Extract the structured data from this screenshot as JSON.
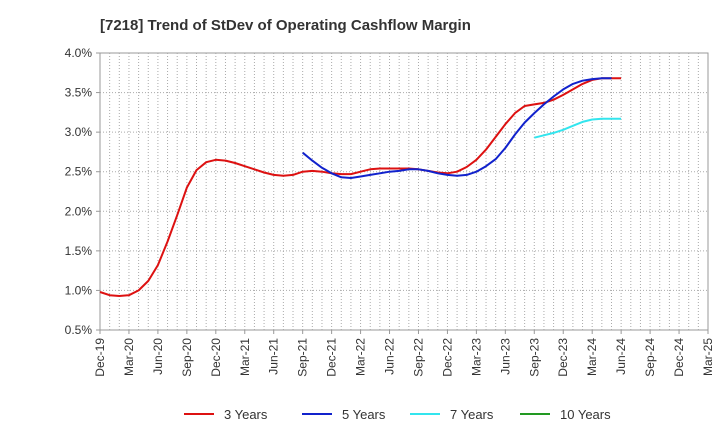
{
  "chart_data": {
    "type": "line",
    "title": "[7218]  Trend of StDev of Operating Cashflow Margin",
    "xlabel": "",
    "ylabel": "",
    "ylim": [
      0.5,
      4.0
    ],
    "y_unit": "%",
    "y_ticks": [
      "0.5%",
      "1.0%",
      "1.5%",
      "2.0%",
      "2.5%",
      "3.0%",
      "3.5%",
      "4.0%"
    ],
    "x_ticks": [
      "Dec-19",
      "Mar-20",
      "Jun-20",
      "Sep-20",
      "Dec-20",
      "Mar-21",
      "Jun-21",
      "Sep-21",
      "Dec-21",
      "Mar-22",
      "Jun-22",
      "Sep-22",
      "Dec-22",
      "Mar-23",
      "Jun-23",
      "Sep-23",
      "Dec-23",
      "Mar-24",
      "Jun-24",
      "Sep-24",
      "Dec-24",
      "Mar-25"
    ],
    "grid": true,
    "legend_position": "bottom",
    "series": [
      {
        "name": "3 Years",
        "color": "#dd1111",
        "start_tick": 0,
        "values": [
          0.98,
          0.94,
          0.93,
          0.94,
          1.0,
          1.12,
          1.32,
          1.62,
          1.95,
          2.3,
          2.52,
          2.62,
          2.65,
          2.64,
          2.61,
          2.57,
          2.53,
          2.49,
          2.46,
          2.45,
          2.46,
          2.5,
          2.51,
          2.5,
          2.48,
          2.47,
          2.47,
          2.5,
          2.53,
          2.54,
          2.54,
          2.54,
          2.54,
          2.53,
          2.51,
          2.49,
          2.48,
          2.5,
          2.56,
          2.65,
          2.78,
          2.94,
          3.1,
          3.24,
          3.33,
          3.35,
          3.37,
          3.41,
          3.47,
          3.54,
          3.61,
          3.66,
          3.68,
          3.68,
          3.68
        ]
      },
      {
        "name": "5 Years",
        "color": "#1122cc",
        "start_tick": 21,
        "values": [
          2.74,
          2.64,
          2.55,
          2.48,
          2.43,
          2.42,
          2.44,
          2.46,
          2.48,
          2.5,
          2.51,
          2.53,
          2.53,
          2.51,
          2.48,
          2.46,
          2.45,
          2.46,
          2.5,
          2.57,
          2.66,
          2.8,
          2.97,
          3.12,
          3.24,
          3.35,
          3.45,
          3.54,
          3.61,
          3.65,
          3.67,
          3.68,
          3.68
        ]
      },
      {
        "name": "7 Years",
        "color": "#33e5ee",
        "start_tick": 45,
        "values": [
          2.93,
          2.96,
          2.99,
          3.03,
          3.08,
          3.13,
          3.16,
          3.17,
          3.17,
          3.17
        ]
      },
      {
        "name": "10 Years",
        "color": "#229922",
        "start_tick": 0,
        "values": []
      }
    ]
  }
}
